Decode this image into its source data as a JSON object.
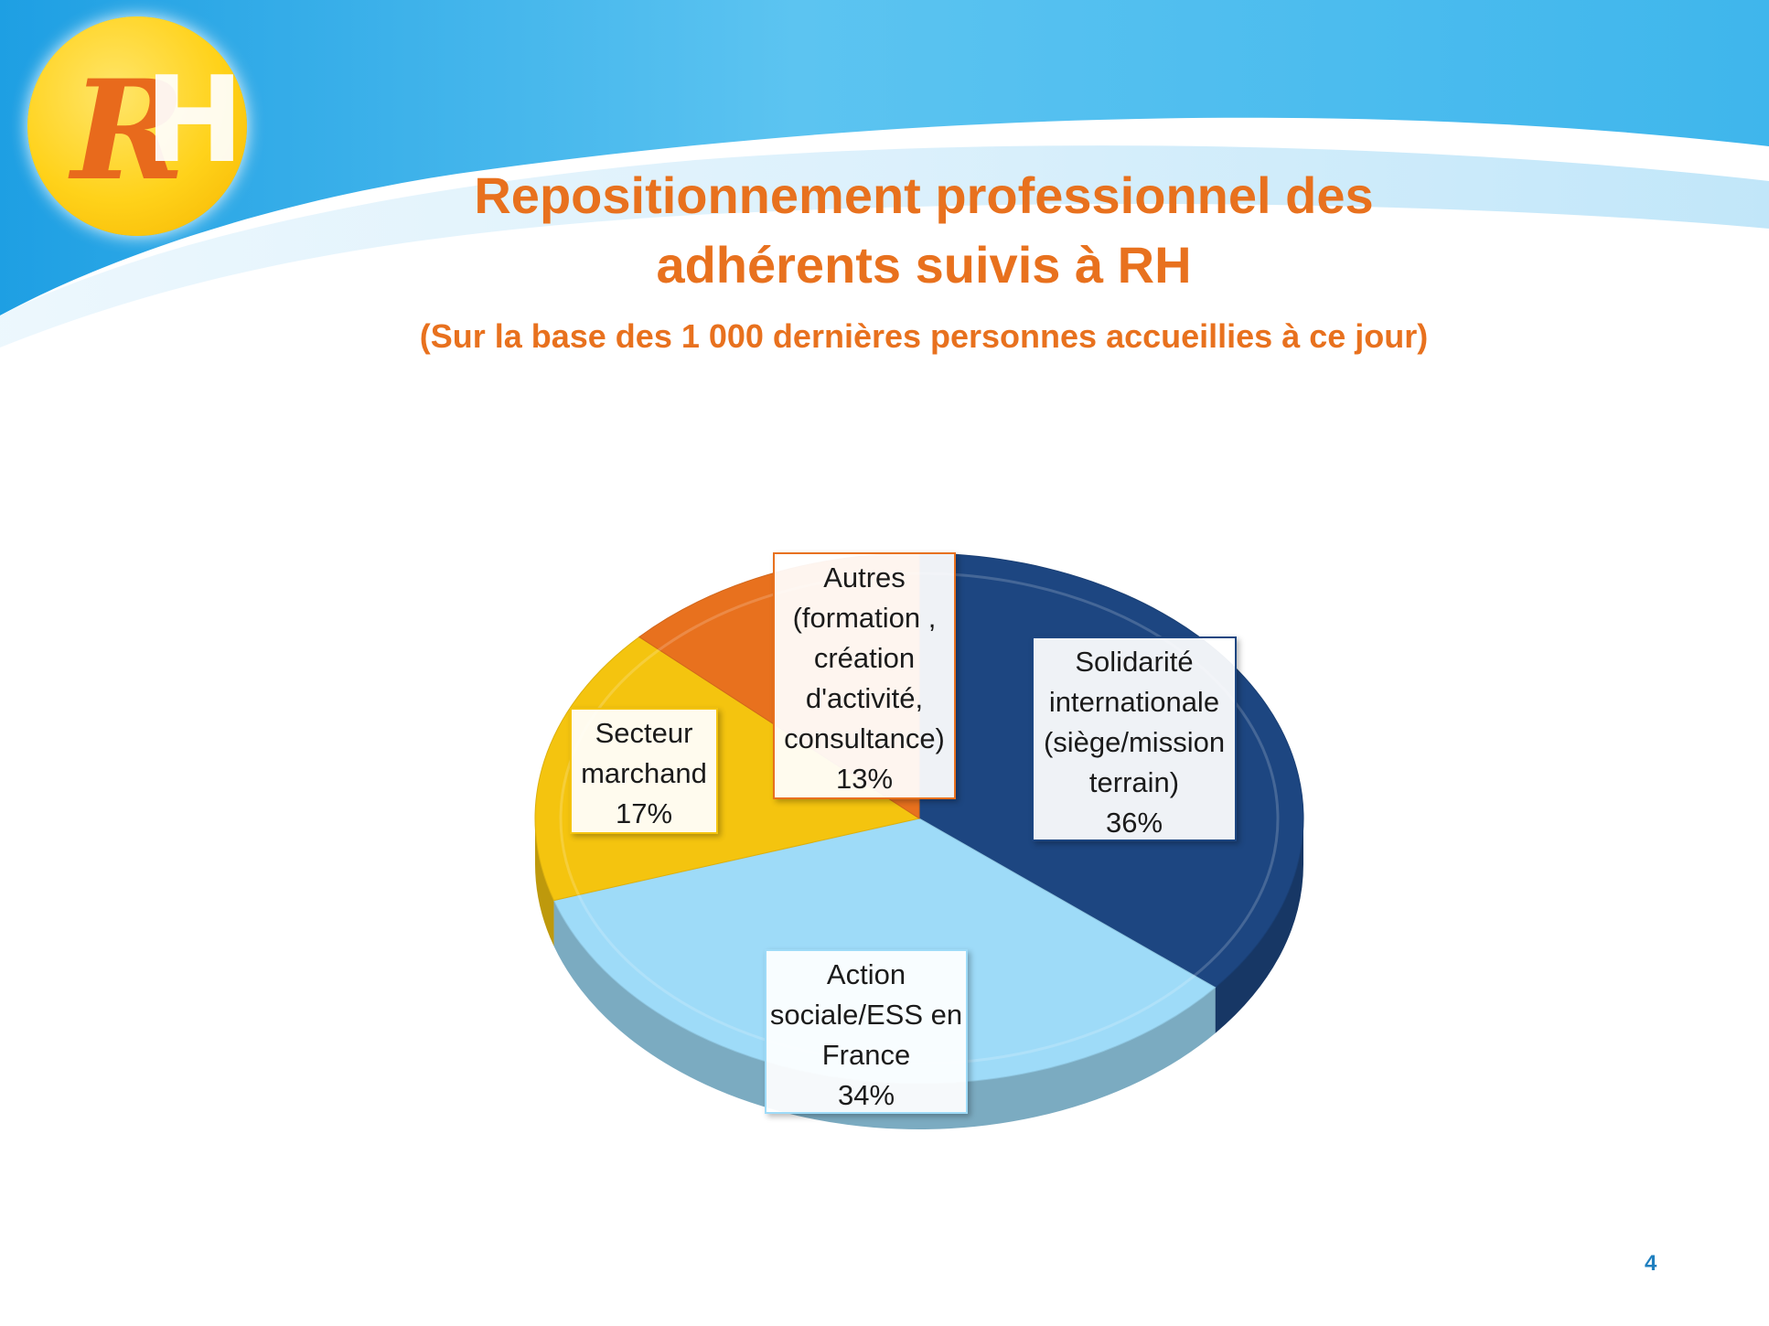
{
  "header": {
    "logo_text": "RH",
    "title_line1": "Repositionnement professionnel des",
    "title_line2": "adhérents suivis à RH",
    "subtitle": "(Sur la base des 1 000 dernières personnes accueillies à ce jour)"
  },
  "page_number": "4",
  "colors": {
    "title": "#e8711e",
    "header_blue": "#42b7ec",
    "autres": "#e8711e",
    "solidarite": "#1d4681",
    "action": "#9edbf8",
    "secteur": "#f4c40f"
  },
  "chart_data": {
    "type": "pie",
    "style": "3d",
    "unit": "%",
    "slices": [
      {
        "label_lines": [
          "Solidarité",
          "internationale",
          "(siège/mission",
          "terrain)"
        ],
        "value_label": "36%",
        "value": 36,
        "color": "#1d4681"
      },
      {
        "label_lines": [
          "Action",
          "sociale/ESS en",
          "France"
        ],
        "value_label": "34%",
        "value": 34,
        "color": "#9edbf8"
      },
      {
        "label_lines": [
          "Secteur",
          "marchand"
        ],
        "value_label": "17%",
        "value": 17,
        "color": "#f4c40f"
      },
      {
        "label_lines": [
          "Autres",
          "(formation ,",
          "création",
          "d'activité,",
          "consultance)"
        ],
        "value_label": "13%",
        "value": 13,
        "color": "#e8711e"
      }
    ]
  }
}
